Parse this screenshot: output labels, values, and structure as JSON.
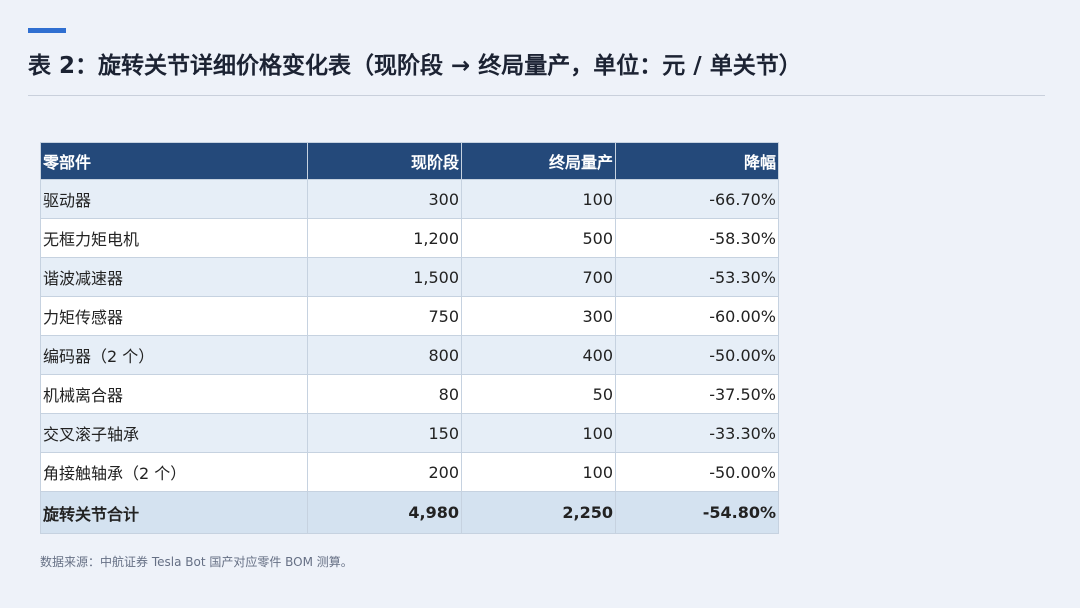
{
  "header": {
    "title": "表 2：旋转关节详细价格变化表（现阶段 → 终局量产，单位：元 / 单关节）"
  },
  "table": {
    "columns": [
      "零部件",
      "现阶段",
      "终局量产",
      "降幅"
    ],
    "rows": [
      [
        "驱动器",
        "300",
        "100",
        "-66.70%"
      ],
      [
        "无框力矩电机",
        "1,200",
        "500",
        "-58.30%"
      ],
      [
        "谐波减速器",
        "1,500",
        "700",
        "-53.30%"
      ],
      [
        "力矩传感器",
        "750",
        "300",
        "-60.00%"
      ],
      [
        "编码器（2 个）",
        "800",
        "400",
        "-50.00%"
      ],
      [
        "机械离合器",
        "80",
        "50",
        "-37.50%"
      ],
      [
        "交叉滚子轴承",
        "150",
        "100",
        "-33.30%"
      ],
      [
        "角接触轴承（2 个）",
        "200",
        "100",
        "-50.00%"
      ]
    ],
    "total": [
      "旋转关节合计",
      "4,980",
      "2,250",
      "-54.80%"
    ]
  },
  "footnote": "数据来源：中航证券 Tesla Bot 国产对应零件 BOM 测算。"
}
